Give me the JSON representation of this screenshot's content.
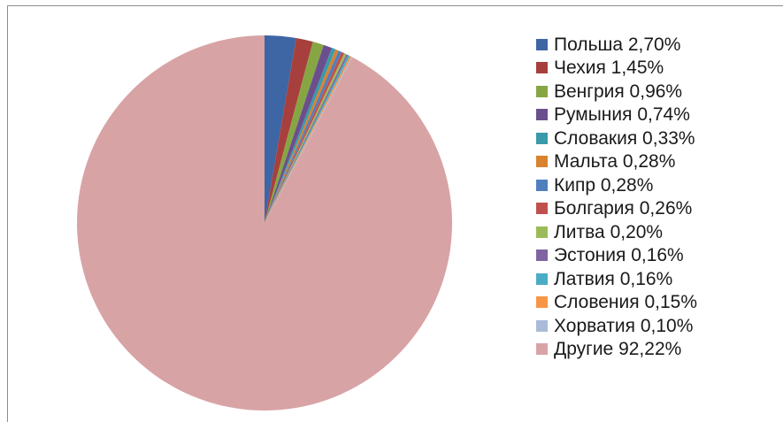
{
  "chart_data": {
    "type": "pie",
    "title": "",
    "legend_position": "right",
    "start_angle": "12 o'clock",
    "direction": "clockwise",
    "slices": [
      {
        "label": "Польша 2,70%",
        "value": 2.7,
        "color": "#3e65a4"
      },
      {
        "label": "Чехия 1,45%",
        "value": 1.45,
        "color": "#a7403d"
      },
      {
        "label": "Венгрия 0,96%",
        "value": 0.96,
        "color": "#86a644"
      },
      {
        "label": "Румыния 0,74%",
        "value": 0.74,
        "color": "#6b4f8c"
      },
      {
        "label": "Словакия 0,33%",
        "value": 0.33,
        "color": "#3a99ab"
      },
      {
        "label": "Мальта 0,28%",
        "value": 0.28,
        "color": "#d9822f"
      },
      {
        "label": "Кипр 0,28%",
        "value": 0.28,
        "color": "#4f7fbd"
      },
      {
        "label": "Болгария 0,26%",
        "value": 0.26,
        "color": "#c0504d"
      },
      {
        "label": "Литва 0,20%",
        "value": 0.2,
        "color": "#9bbb59"
      },
      {
        "label": "Эстония 0,16%",
        "value": 0.16,
        "color": "#8064a2"
      },
      {
        "label": "Латвия 0,16%",
        "value": 0.16,
        "color": "#4bacc6"
      },
      {
        "label": "Словения 0,15%",
        "value": 0.15,
        "color": "#f79646"
      },
      {
        "label": "Хорватия 0,10%",
        "value": 0.1,
        "color": "#aabbd9"
      },
      {
        "label": "Другие 92,22%",
        "value": 92.22,
        "color": "#d8a3a5"
      }
    ]
  }
}
